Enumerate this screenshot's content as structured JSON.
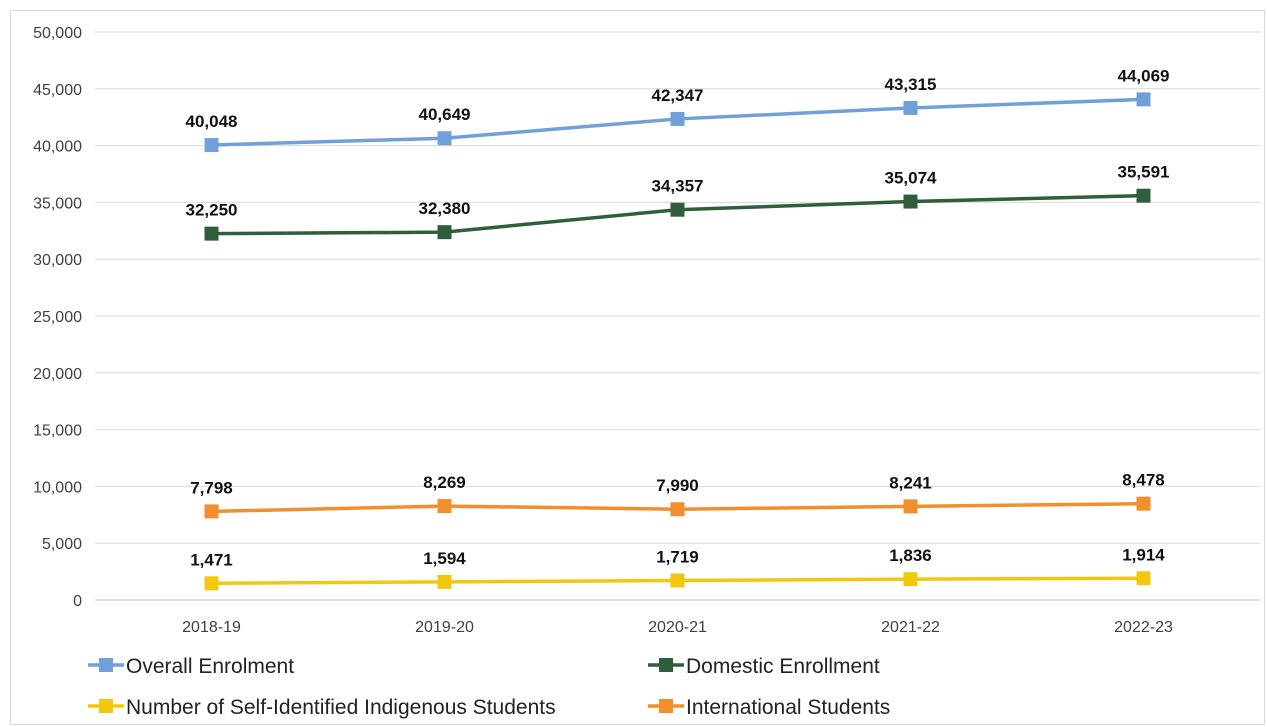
{
  "chart_data": {
    "type": "line",
    "categories": [
      "2018-19",
      "2019-20",
      "2020-21",
      "2021-22",
      "2022-23"
    ],
    "ylim": [
      0,
      50000
    ],
    "yticks": [
      "0",
      "5,000",
      "10,000",
      "15,000",
      "20,000",
      "25,000",
      "30,000",
      "35,000",
      "40,000",
      "45,000",
      "50,000"
    ],
    "grid": true,
    "legend_position": "bottom",
    "series": [
      {
        "name": "Overall Enrolment",
        "color": "#6fa0d8",
        "values": [
          40048,
          40649,
          42347,
          43315,
          44069
        ],
        "labels": [
          "40,048",
          "40,649",
          "42,347",
          "43,315",
          "44,069"
        ]
      },
      {
        "name": "Domestic Enrollment",
        "color": "#2e5e3a",
        "values": [
          32250,
          32380,
          34357,
          35074,
          35591
        ],
        "labels": [
          "32,250",
          "32,380",
          "34,357",
          "35,074",
          "35,591"
        ]
      },
      {
        "name": "Number of Self-Identified Indigenous Students",
        "color": "#f2c80f",
        "values": [
          1471,
          1594,
          1719,
          1836,
          1914
        ],
        "labels": [
          "1,471",
          "1,594",
          "1,719",
          "1,836",
          "1,914"
        ]
      },
      {
        "name": "International Students",
        "color": "#f28e2b",
        "values": [
          7798,
          8269,
          7990,
          8241,
          8478
        ],
        "labels": [
          "7,798",
          "8,269",
          "7,990",
          "8,241",
          "8,478"
        ]
      }
    ]
  }
}
